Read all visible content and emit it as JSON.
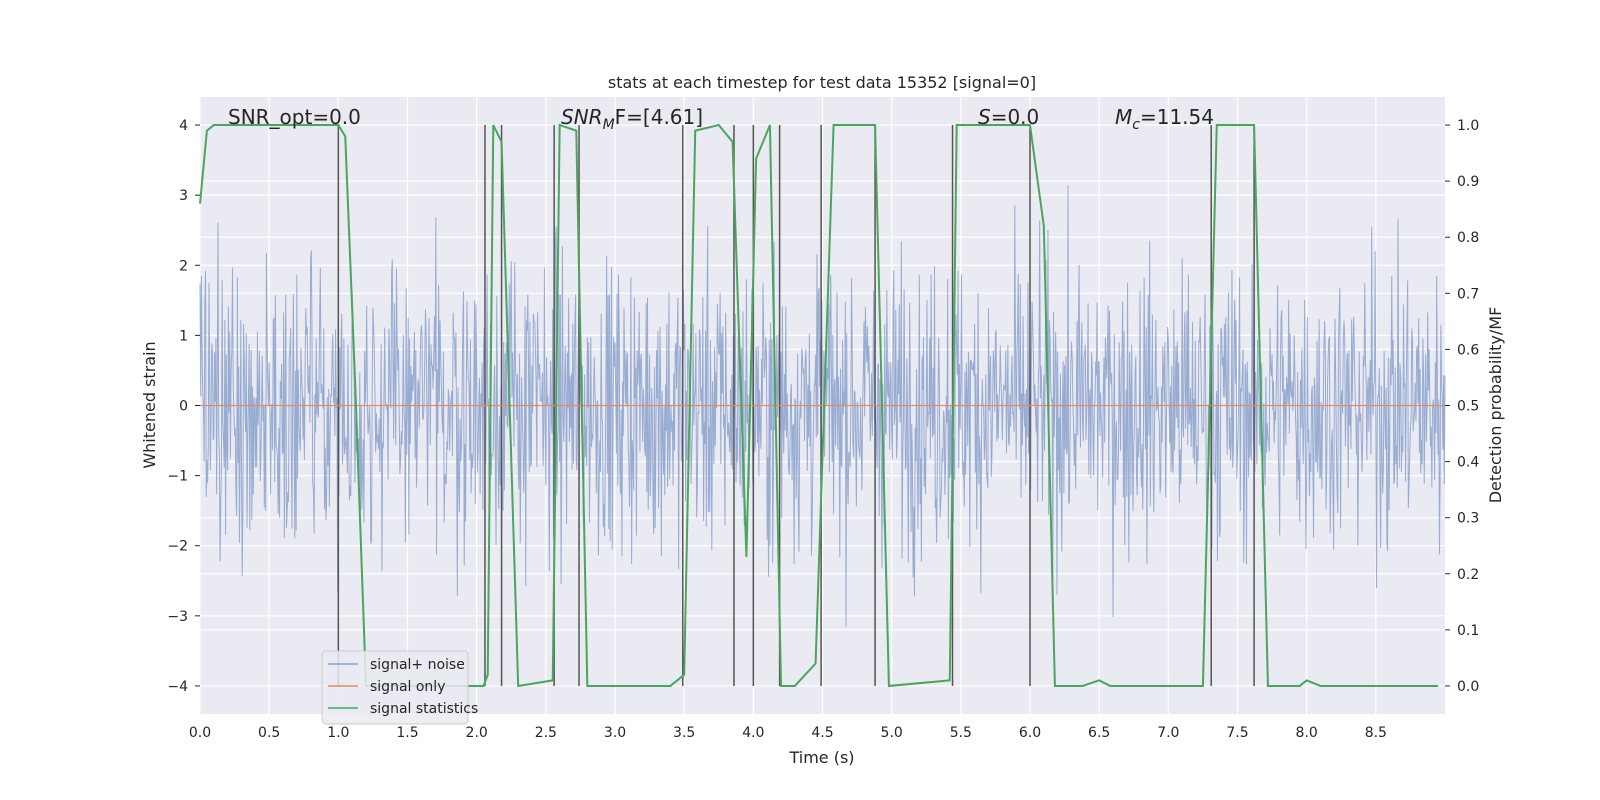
{
  "chart_data": {
    "type": "line",
    "title": "stats at each timestep for test data 15352 [signal=0]",
    "xlabel": "Time (s)",
    "ylabel": "Whitened strain",
    "y2label": "Detection probability/MF",
    "xlim": [
      0.0,
      9.0
    ],
    "ylim": [
      -4.4,
      4.4
    ],
    "y2lim": [
      -0.05,
      1.05
    ],
    "x_ticks": [
      "0.0",
      "0.5",
      "1.0",
      "1.5",
      "2.0",
      "2.5",
      "3.0",
      "3.5",
      "4.0",
      "4.5",
      "5.0",
      "5.5",
      "6.0",
      "6.5",
      "7.0",
      "7.5",
      "8.0",
      "8.5"
    ],
    "y_ticks": [
      "−4",
      "−3",
      "−2",
      "−1",
      "0",
      "1",
      "2",
      "3",
      "4"
    ],
    "y2_ticks": [
      "0.0",
      "0.1",
      "0.2",
      "0.3",
      "0.4",
      "0.5",
      "0.6",
      "0.7",
      "0.8",
      "0.9",
      "1.0"
    ],
    "grid": true,
    "annotations": {
      "snr_opt": "SNR_opt=0.0",
      "snr_mf_base": "SNR",
      "snr_mf_sub": "M",
      "snr_mf_rest": "F=[4.61]",
      "s_italic": "S",
      "s_rest": "=0.0",
      "mc_base": "M",
      "mc_sub": "c",
      "mc_rest": "=11.54"
    },
    "legend": {
      "placement": "lower-left",
      "entries": [
        "signal+ noise",
        "signal only",
        "signal statistics"
      ]
    },
    "series": [
      {
        "name": "signal+ noise",
        "color": "#8aa0cb",
        "description_type": "noise",
        "duration_s": 9.0,
        "std": 1.0,
        "peak_range": [
          -3.6,
          3.6
        ]
      },
      {
        "name": "signal only",
        "color": "#e08a6a",
        "x": [
          0.0,
          9.0
        ],
        "y": [
          0.0,
          0.0
        ]
      },
      {
        "name": "signal statistics",
        "color": "#4aa55e",
        "axis": "right",
        "x": [
          0.0,
          0.05,
          0.1,
          1.0,
          1.05,
          1.12,
          1.2,
          2.05,
          2.08,
          2.12,
          2.18,
          2.3,
          2.55,
          2.6,
          2.72,
          2.8,
          3.4,
          3.5,
          3.58,
          3.75,
          3.85,
          3.95,
          4.02,
          4.12,
          4.2,
          4.3,
          4.45,
          4.58,
          4.88,
          4.98,
          5.42,
          5.47,
          6.0,
          6.1,
          6.18,
          6.38,
          6.5,
          6.58,
          7.25,
          7.35,
          7.62,
          7.72,
          7.95,
          8.0,
          8.1,
          8.95
        ],
        "y": [
          0.86,
          0.99,
          1.0,
          1.0,
          0.98,
          0.55,
          0.0,
          0.0,
          0.02,
          1.0,
          0.97,
          0.0,
          0.01,
          1.0,
          0.99,
          0.0,
          0.0,
          0.02,
          0.99,
          1.0,
          0.97,
          0.23,
          0.94,
          1.0,
          0.0,
          0.0,
          0.04,
          1.0,
          1.0,
          0.0,
          0.01,
          1.0,
          1.0,
          0.82,
          0.0,
          0.0,
          0.01,
          0.0,
          0.0,
          1.0,
          1.0,
          0.0,
          0.0,
          0.01,
          0.0,
          0.0
        ]
      }
    ],
    "detection_markers_x": [
      1.0,
      2.06,
      2.18,
      2.56,
      2.74,
      3.49,
      3.86,
      4.0,
      4.19,
      4.49,
      4.88,
      5.44,
      6.0,
      7.31,
      7.62
    ]
  }
}
